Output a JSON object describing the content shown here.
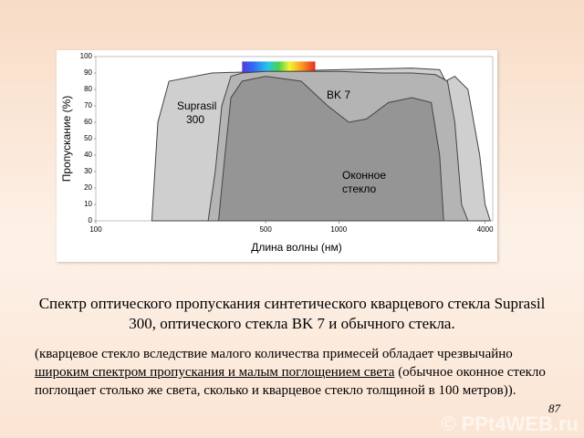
{
  "chart_data": {
    "type": "area",
    "x_label": "Длина волны (нм)",
    "y_label": "Пропускание (%)",
    "log_x": true,
    "xlim": [
      100,
      4300
    ],
    "xticks": [
      100,
      500,
      1000,
      4000
    ],
    "ylim": [
      0,
      100
    ],
    "yticks": [
      0,
      10,
      20,
      30,
      40,
      50,
      60,
      70,
      80,
      90,
      100
    ],
    "spectrum_band": {
      "xlim": [
        400,
        800
      ],
      "top": 97
    },
    "series": [
      {
        "name": "Suprasil 300",
        "color": "#cfcfcf",
        "x": [
          170,
          180,
          200,
          300,
          500,
          1000,
          2000,
          2600,
          2750,
          3000,
          3400,
          3800,
          4000,
          4200
        ],
        "values": [
          0,
          60,
          85,
          90,
          91,
          92,
          93,
          92,
          85,
          88,
          80,
          40,
          10,
          0
        ]
      },
      {
        "name": "BK 7",
        "color": "#b4b4b4",
        "x": [
          290,
          310,
          330,
          360,
          400,
          500,
          1000,
          1500,
          2000,
          2500,
          2800,
          3000,
          3200,
          3400
        ],
        "values": [
          0,
          30,
          70,
          88,
          90,
          91,
          91,
          90,
          90,
          89,
          85,
          60,
          10,
          0
        ]
      },
      {
        "name": "Оконное стекло",
        "color": "#959595",
        "x": [
          320,
          340,
          360,
          400,
          500,
          700,
          900,
          1100,
          1300,
          1600,
          2000,
          2400,
          2600,
          2700
        ],
        "values": [
          0,
          40,
          75,
          85,
          88,
          85,
          70,
          60,
          62,
          72,
          75,
          72,
          40,
          0
        ]
      }
    ]
  },
  "caption": "Спектр оптического пропускания синтетического кварцевого стекла Suprasil 300, оптического стекла BK 7 и обычного стекла.",
  "note": {
    "before": "(кварцевое стекло вследствие малого количества примесей обладает чрезвычайно ",
    "underlined": "широким спектром пропускания и малым поглощением света",
    "after": " (обычное оконное стекло поглощает столько же света, сколько и кварцевое стекло толщиной в 100 метров))."
  },
  "page_number": "87",
  "watermark": "© PPt4WEB.ru"
}
